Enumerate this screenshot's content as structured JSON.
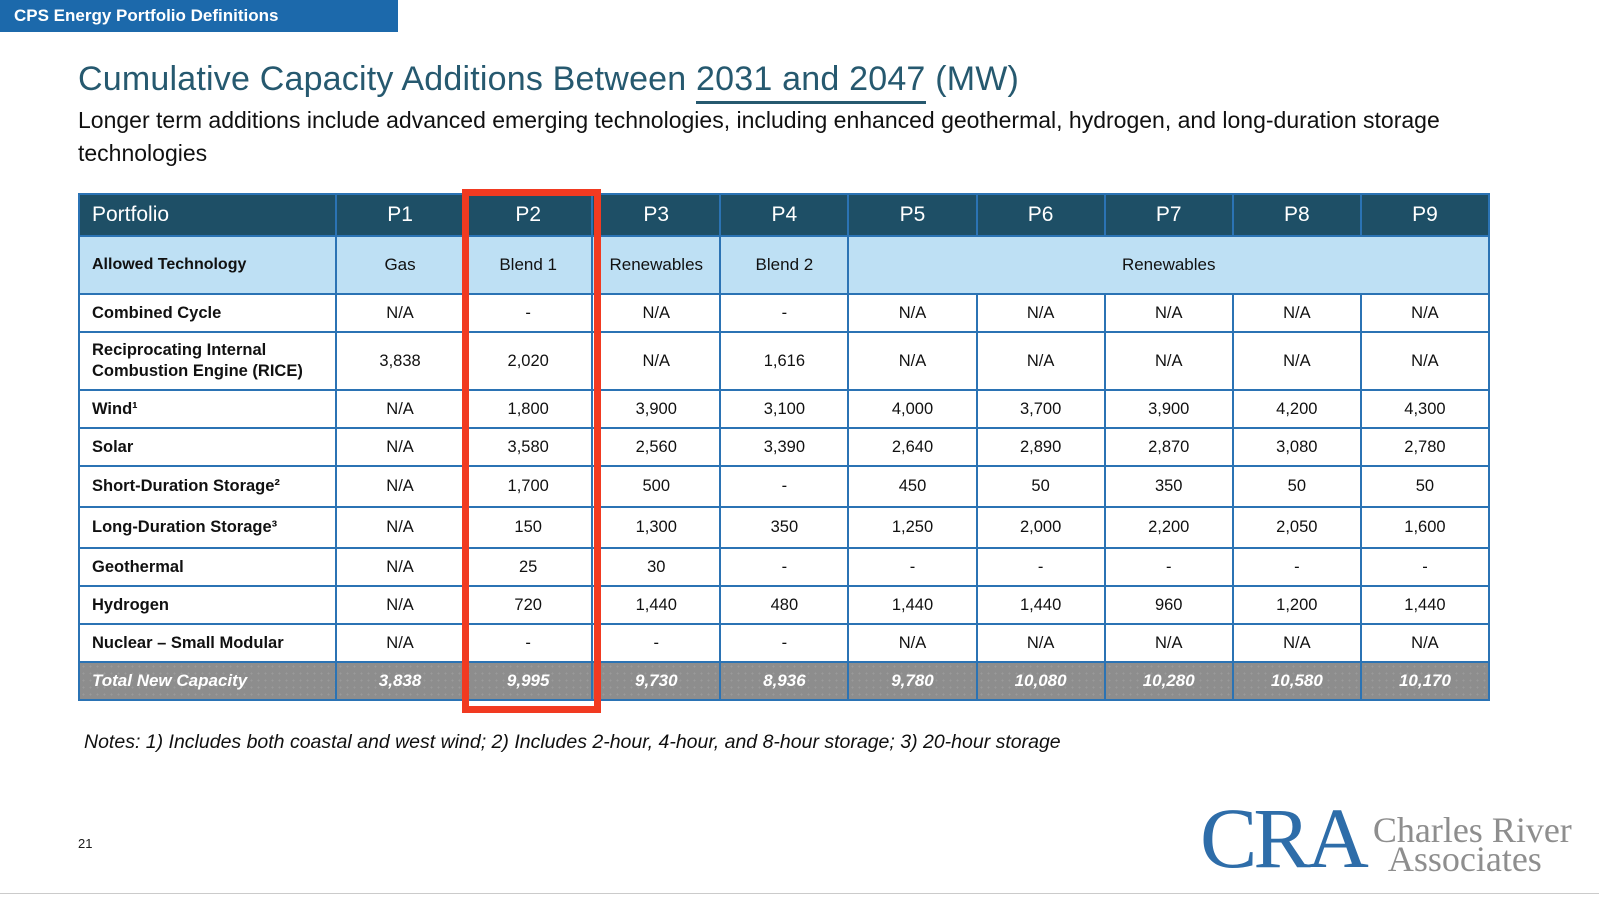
{
  "banner": {
    "label": "CPS Energy Portfolio Definitions"
  },
  "title": {
    "prefix": "Cumulative Capacity Additions Between ",
    "underlined": "2031 and 2047",
    "suffix": " (MW)"
  },
  "subtitle": "Longer term additions include advanced emerging technologies, including enhanced geothermal, hydrogen, and long-duration storage technologies",
  "table": {
    "header": {
      "label": "Portfolio",
      "columns": [
        "P1",
        "P2",
        "P3",
        "P4",
        "P5",
        "P6",
        "P7",
        "P8",
        "P9"
      ]
    },
    "tech_row": {
      "label": "Allowed Technology",
      "cells": [
        {
          "text": "Gas",
          "span": 1
        },
        {
          "text": "Blend 1",
          "span": 1
        },
        {
          "text": "Renewables",
          "span": 1
        },
        {
          "text": "Blend 2",
          "span": 1
        },
        {
          "text": "Renewables",
          "span": 5
        }
      ]
    },
    "rows": [
      {
        "label": "Combined Cycle",
        "tall": false,
        "mid": false,
        "values": [
          "N/A",
          "-",
          "N/A",
          "-",
          "N/A",
          "N/A",
          "N/A",
          "N/A",
          "N/A"
        ]
      },
      {
        "label": "Reciprocating Internal Combustion Engine (RICE)",
        "tall": true,
        "mid": false,
        "values": [
          "3,838",
          "2,020",
          "N/A",
          "1,616",
          "N/A",
          "N/A",
          "N/A",
          "N/A",
          "N/A"
        ]
      },
      {
        "label": "Wind¹",
        "tall": false,
        "mid": false,
        "values": [
          "N/A",
          "1,800",
          "3,900",
          "3,100",
          "4,000",
          "3,700",
          "3,900",
          "4,200",
          "4,300"
        ]
      },
      {
        "label": "Solar",
        "tall": false,
        "mid": false,
        "values": [
          "N/A",
          "3,580",
          "2,560",
          "3,390",
          "2,640",
          "2,890",
          "2,870",
          "3,080",
          "2,780"
        ]
      },
      {
        "label": "Short-Duration Storage²",
        "tall": false,
        "mid": true,
        "values": [
          "N/A",
          "1,700",
          "500",
          "-",
          "450",
          "50",
          "350",
          "50",
          "50"
        ]
      },
      {
        "label": "Long-Duration Storage³",
        "tall": false,
        "mid": true,
        "values": [
          "N/A",
          "150",
          "1,300",
          "350",
          "1,250",
          "2,000",
          "2,200",
          "2,050",
          "1,600"
        ]
      },
      {
        "label": "Geothermal",
        "tall": false,
        "mid": false,
        "values": [
          "N/A",
          "25",
          "30",
          "-",
          "-",
          "-",
          "-",
          "-",
          "-"
        ]
      },
      {
        "label": "Hydrogen",
        "tall": false,
        "mid": false,
        "values": [
          "N/A",
          "720",
          "1,440",
          "480",
          "1,440",
          "1,440",
          "960",
          "1,200",
          "1,440"
        ]
      },
      {
        "label": "Nuclear – Small Modular",
        "tall": false,
        "mid": false,
        "values": [
          "N/A",
          "-",
          "-",
          "-",
          "N/A",
          "N/A",
          "N/A",
          "N/A",
          "N/A"
        ]
      }
    ],
    "total_row": {
      "label": "Total New Capacity",
      "values": [
        "3,838",
        "9,995",
        "9,730",
        "8,936",
        "9,780",
        "10,080",
        "10,280",
        "10,580",
        "10,170"
      ]
    }
  },
  "highlight": {
    "column": "P2",
    "color": "#F13A21"
  },
  "notes": "Notes: 1) Includes both coastal and west wind; 2) Includes 2-hour, 4-hour, and 8-hour storage; 3) 20-hour storage",
  "page_number": "21",
  "logo": {
    "acronym": "CRA",
    "line1": "Charles River",
    "line2": "Associates"
  },
  "colors": {
    "banner_blue": "#1C69AB",
    "title_blue": "#26596F",
    "header_navy": "#1E4F66",
    "light_blue_row": "#BEE0F4",
    "cell_border_blue": "#2B73B4",
    "total_row_gray": "#8D8D8D",
    "highlight_red": "#F13A21",
    "logo_blue": "#2E6DA9",
    "logo_gray": "#8E8E8E"
  }
}
